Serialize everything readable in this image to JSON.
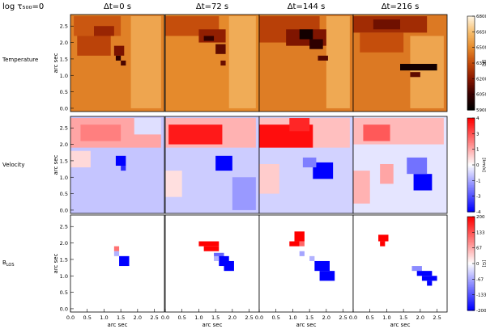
{
  "header_label": "log τ₅₀₀=0",
  "colors": {
    "panel_border": "#000000"
  },
  "chart_data": {
    "type": "heatmap",
    "title": "log τ₅₀₀=0",
    "time_labels": [
      "Δt=0 s",
      "Δt=72 s",
      "Δt=144 s",
      "Δt=216 s"
    ],
    "xlabel": "arc sec",
    "ylabel": "arc sec",
    "xlim": [
      0,
      2.8
    ],
    "ylim": [
      -0.1,
      2.85
    ],
    "x_ticks": [
      "0.0",
      "0.5",
      "1.0",
      "1.5",
      "2.0",
      "2.5"
    ],
    "y_ticks": [
      "0.0",
      "0.5",
      "1.0",
      "1.5",
      "2.0",
      "2.5"
    ],
    "grid": false,
    "rows": [
      {
        "name": "Temperature",
        "colorbar_ticks": [
          "6800",
          "6650",
          "6500",
          "6350",
          "6200",
          "6050",
          "5900"
        ],
        "colorbar_unit": "[K]",
        "range": [
          5900,
          6800
        ],
        "colormap": [
          "#000000",
          "#3a0000",
          "#8a1800",
          "#c34a0a",
          "#e58a2c",
          "#f6bd6d",
          "#fff4e0"
        ],
        "panels": [
          {
            "time": "Δt=0 s",
            "background": 6480,
            "features": [
              {
                "x": 0.1,
                "y": 2.2,
                "w": 1.4,
                "h": 0.6,
                "value": 6380
              },
              {
                "x": 0.2,
                "y": 1.6,
                "w": 1.0,
                "h": 0.6,
                "value": 6330
              },
              {
                "x": 1.8,
                "y": 0.0,
                "w": 0.9,
                "h": 2.8,
                "value": 6580
              },
              {
                "x": 0.7,
                "y": 2.2,
                "w": 0.6,
                "h": 0.3,
                "value": 6240
              },
              {
                "x": 1.3,
                "y": 1.6,
                "w": 0.3,
                "h": 0.3,
                "value": 6170
              },
              {
                "x": 1.35,
                "y": 1.45,
                "w": 0.15,
                "h": 0.15,
                "value": 6020
              },
              {
                "x": 1.5,
                "y": 1.3,
                "w": 0.15,
                "h": 0.15,
                "value": 6080
              }
            ]
          },
          {
            "time": "Δt=72 s",
            "background": 6500,
            "features": [
              {
                "x": 0.0,
                "y": 2.2,
                "w": 1.6,
                "h": 0.6,
                "value": 6360
              },
              {
                "x": 1.9,
                "y": 0.0,
                "w": 0.8,
                "h": 2.8,
                "value": 6600
              },
              {
                "x": 1.0,
                "y": 2.0,
                "w": 0.8,
                "h": 0.4,
                "value": 6220
              },
              {
                "x": 1.15,
                "y": 2.05,
                "w": 0.3,
                "h": 0.15,
                "value": 6030
              },
              {
                "x": 1.5,
                "y": 1.65,
                "w": 0.3,
                "h": 0.3,
                "value": 6120
              },
              {
                "x": 1.65,
                "y": 1.3,
                "w": 0.15,
                "h": 0.15,
                "value": 6140
              }
            ]
          },
          {
            "time": "Δt=144 s",
            "background": 6470,
            "features": [
              {
                "x": 0.0,
                "y": 2.0,
                "w": 1.8,
                "h": 0.8,
                "value": 6320
              },
              {
                "x": 2.0,
                "y": 0.0,
                "w": 0.7,
                "h": 2.8,
                "value": 6590
              },
              {
                "x": 0.8,
                "y": 1.9,
                "w": 1.2,
                "h": 0.5,
                "value": 6180
              },
              {
                "x": 1.2,
                "y": 2.1,
                "w": 0.4,
                "h": 0.3,
                "value": 5950
              },
              {
                "x": 1.5,
                "y": 1.8,
                "w": 0.4,
                "h": 0.3,
                "value": 6020
              },
              {
                "x": 1.75,
                "y": 1.45,
                "w": 0.3,
                "h": 0.15,
                "value": 6100
              }
            ]
          },
          {
            "time": "Δt=216 s",
            "background": 6460,
            "features": [
              {
                "x": 0.0,
                "y": 2.3,
                "w": 2.2,
                "h": 0.5,
                "value": 6260
              },
              {
                "x": 0.2,
                "y": 1.7,
                "w": 1.3,
                "h": 0.6,
                "value": 6360
              },
              {
                "x": 1.7,
                "y": 0.0,
                "w": 1.0,
                "h": 2.2,
                "value": 6580
              },
              {
                "x": 1.4,
                "y": 1.15,
                "w": 1.1,
                "h": 0.2,
                "value": 5950
              },
              {
                "x": 1.7,
                "y": 0.95,
                "w": 0.3,
                "h": 0.15,
                "value": 6120
              },
              {
                "x": 0.6,
                "y": 2.4,
                "w": 0.8,
                "h": 0.3,
                "value": 6150
              }
            ]
          }
        ]
      },
      {
        "name": "Velocity",
        "colorbar_ticks": [
          "4",
          "3",
          "1",
          "0",
          "-1",
          "-3",
          "-4"
        ],
        "colorbar_unit": "[km/s]",
        "range": [
          -4,
          4
        ],
        "colormap": [
          "#0000ff",
          "#7f7fff",
          "#ffffff",
          "#ff7f7f",
          "#ff0000"
        ],
        "panels": [
          {
            "time": "Δt=0 s",
            "background": -0.9,
            "features": [
              {
                "x": 0.0,
                "y": 1.9,
                "w": 2.7,
                "h": 0.9,
                "value": 1.4
              },
              {
                "x": 0.3,
                "y": 2.1,
                "w": 1.2,
                "h": 0.5,
                "value": 2.0
              },
              {
                "x": 1.9,
                "y": 2.3,
                "w": 0.8,
                "h": 0.5,
                "value": -0.5
              },
              {
                "x": 0.0,
                "y": 1.3,
                "w": 0.6,
                "h": 0.5,
                "value": 0.6
              },
              {
                "x": 1.35,
                "y": 1.35,
                "w": 0.3,
                "h": 0.3,
                "value": -4.0
              },
              {
                "x": 1.5,
                "y": 1.2,
                "w": 0.15,
                "h": 0.15,
                "value": -3.3
              }
            ]
          },
          {
            "time": "Δt=72 s",
            "background": -0.8,
            "features": [
              {
                "x": 0.0,
                "y": 1.9,
                "w": 2.7,
                "h": 0.9,
                "value": 1.2
              },
              {
                "x": 0.1,
                "y": 2.0,
                "w": 1.6,
                "h": 0.6,
                "value": 3.6
              },
              {
                "x": 0.0,
                "y": 0.4,
                "w": 0.5,
                "h": 0.8,
                "value": 0.5
              },
              {
                "x": 1.5,
                "y": 1.2,
                "w": 0.5,
                "h": 0.45,
                "value": -4.0
              },
              {
                "x": 2.0,
                "y": 0.0,
                "w": 0.7,
                "h": 1.0,
                "value": -1.6
              }
            ]
          },
          {
            "time": "Δt=144 s",
            "background": -0.7,
            "features": [
              {
                "x": 0.0,
                "y": 1.9,
                "w": 2.7,
                "h": 0.9,
                "value": 1.0
              },
              {
                "x": 0.0,
                "y": 1.9,
                "w": 1.6,
                "h": 0.7,
                "value": 3.8
              },
              {
                "x": 0.9,
                "y": 2.4,
                "w": 0.6,
                "h": 0.4,
                "value": 3.4
              },
              {
                "x": 0.0,
                "y": 0.5,
                "w": 0.6,
                "h": 0.9,
                "value": 0.8
              },
              {
                "x": 1.6,
                "y": 0.95,
                "w": 0.6,
                "h": 0.5,
                "value": -4.0
              },
              {
                "x": 1.3,
                "y": 1.3,
                "w": 0.4,
                "h": 0.3,
                "value": -2.0
              }
            ]
          },
          {
            "time": "Δt=216 s",
            "background": -0.4,
            "features": [
              {
                "x": 0.0,
                "y": 2.0,
                "w": 2.7,
                "h": 0.8,
                "value": 1.1
              },
              {
                "x": 0.3,
                "y": 2.1,
                "w": 0.8,
                "h": 0.5,
                "value": 2.6
              },
              {
                "x": 0.0,
                "y": 0.2,
                "w": 0.5,
                "h": 1.0,
                "value": 1.2
              },
              {
                "x": 0.8,
                "y": 0.8,
                "w": 0.4,
                "h": 0.6,
                "value": 1.4
              },
              {
                "x": 1.8,
                "y": 0.6,
                "w": 0.55,
                "h": 0.5,
                "value": -4.0
              },
              {
                "x": 1.6,
                "y": 1.1,
                "w": 0.6,
                "h": 0.5,
                "value": -2.2
              }
            ]
          }
        ]
      },
      {
        "name": "B_LOS",
        "colorbar_ticks": [
          "200",
          "133",
          "67",
          "0",
          "-67",
          "-133",
          "-200"
        ],
        "colorbar_unit": "[G]",
        "range": [
          -200,
          200
        ],
        "colormap": [
          "#0000ff",
          "#7f7fff",
          "#ffffff",
          "#ff7f7f",
          "#ff0000"
        ],
        "panels": [
          {
            "time": "Δt=0 s",
            "background": 0,
            "features": [
              {
                "x": 1.3,
                "y": 1.75,
                "w": 0.15,
                "h": 0.15,
                "value": 110
              },
              {
                "x": 1.3,
                "y": 1.6,
                "w": 0.15,
                "h": 0.15,
                "value": -60
              },
              {
                "x": 1.45,
                "y": 1.3,
                "w": 0.3,
                "h": 0.3,
                "value": -200
              }
            ]
          },
          {
            "time": "Δt=72 s",
            "background": 0,
            "features": [
              {
                "x": 1.0,
                "y": 1.9,
                "w": 0.6,
                "h": 0.15,
                "value": 200
              },
              {
                "x": 1.15,
                "y": 1.75,
                "w": 0.45,
                "h": 0.15,
                "value": 200
              },
              {
                "x": 1.45,
                "y": 1.55,
                "w": 0.3,
                "h": 0.15,
                "value": -120
              },
              {
                "x": 1.6,
                "y": 1.3,
                "w": 0.3,
                "h": 0.3,
                "value": -200
              },
              {
                "x": 1.75,
                "y": 1.15,
                "w": 0.3,
                "h": 0.3,
                "value": -200
              },
              {
                "x": 1.45,
                "y": 1.45,
                "w": 0.15,
                "h": 0.15,
                "value": -60
              }
            ]
          },
          {
            "time": "Δt=144 s",
            "background": 0,
            "features": [
              {
                "x": 1.05,
                "y": 2.05,
                "w": 0.3,
                "h": 0.3,
                "value": 200
              },
              {
                "x": 0.9,
                "y": 1.9,
                "w": 0.3,
                "h": 0.15,
                "value": 200
              },
              {
                "x": 1.2,
                "y": 1.9,
                "w": 0.15,
                "h": 0.15,
                "value": 120
              },
              {
                "x": 1.2,
                "y": 1.6,
                "w": 0.15,
                "h": 0.15,
                "value": -70
              },
              {
                "x": 1.5,
                "y": 1.45,
                "w": 0.15,
                "h": 0.15,
                "value": -60
              },
              {
                "x": 1.65,
                "y": 1.15,
                "w": 0.45,
                "h": 0.3,
                "value": -200
              },
              {
                "x": 1.8,
                "y": 0.85,
                "w": 0.45,
                "h": 0.3,
                "value": -200
              }
            ]
          },
          {
            "time": "Δt=216 s",
            "background": 0,
            "features": [
              {
                "x": 0.75,
                "y": 2.05,
                "w": 0.3,
                "h": 0.2,
                "value": 200
              },
              {
                "x": 0.8,
                "y": 1.9,
                "w": 0.15,
                "h": 0.15,
                "value": 200
              },
              {
                "x": 1.75,
                "y": 1.15,
                "w": 0.3,
                "h": 0.15,
                "value": -90
              },
              {
                "x": 1.9,
                "y": 1.0,
                "w": 0.45,
                "h": 0.15,
                "value": -200
              },
              {
                "x": 2.05,
                "y": 0.85,
                "w": 0.45,
                "h": 0.15,
                "value": -200
              },
              {
                "x": 2.2,
                "y": 0.7,
                "w": 0.15,
                "h": 0.15,
                "value": -200
              }
            ]
          }
        ]
      }
    ]
  }
}
